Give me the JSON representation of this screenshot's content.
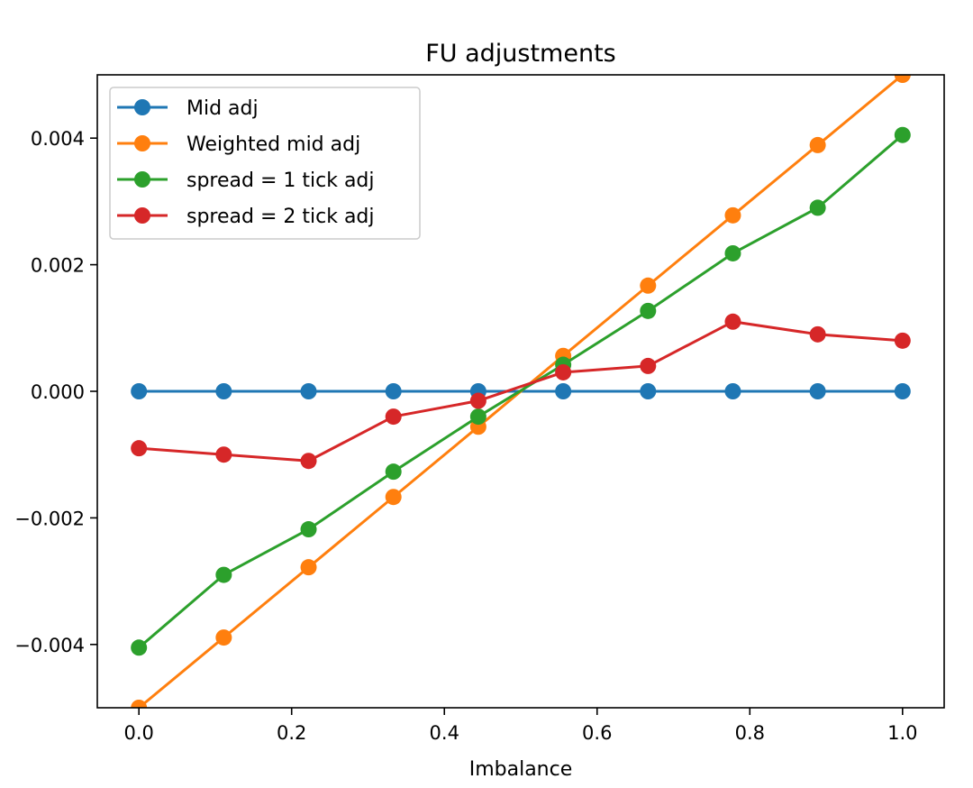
{
  "chart_data": {
    "type": "line",
    "title": "FU adjustments",
    "xlabel": "Imbalance",
    "ylabel": "",
    "xlim": [
      -0.0545,
      1.0545
    ],
    "ylim": [
      -0.005,
      0.005
    ],
    "xticks": [
      0.0,
      0.2,
      0.4,
      0.6,
      0.8,
      1.0
    ],
    "xtick_labels": [
      "0.0",
      "0.2",
      "0.4",
      "0.6",
      "0.8",
      "1.0"
    ],
    "yticks": [
      -0.004,
      -0.002,
      0.0,
      0.002,
      0.004
    ],
    "ytick_labels": [
      "−0.004",
      "−0.002",
      "0.000",
      "0.002",
      "0.004"
    ],
    "grid": false,
    "legend_location": "top-left",
    "x": [
      0.0,
      0.1111,
      0.2222,
      0.3333,
      0.4444,
      0.5556,
      0.6667,
      0.7778,
      0.8889,
      1.0
    ],
    "series": [
      {
        "name": "Mid adj",
        "color": "#1f77b4",
        "values": [
          0.0,
          0.0,
          0.0,
          0.0,
          0.0,
          0.0,
          0.0,
          0.0,
          0.0,
          0.0
        ]
      },
      {
        "name": "Weighted mid adj",
        "color": "#ff7f0e",
        "values": [
          -0.005,
          -0.00389,
          -0.00278,
          -0.00167,
          -0.00056,
          0.00056,
          0.00167,
          0.00278,
          0.00389,
          0.005
        ]
      },
      {
        "name": "spread = 1 tick adj",
        "color": "#2ca02c",
        "values": [
          -0.00405,
          -0.0029,
          -0.00218,
          -0.00127,
          -0.0004,
          0.00042,
          0.00127,
          0.00218,
          0.0029,
          0.00405
        ]
      },
      {
        "name": "spread = 2 tick adj",
        "color": "#d62728",
        "values": [
          -0.0009,
          -0.001,
          -0.0011,
          -0.0004,
          -0.00015,
          0.0003,
          0.0004,
          0.0011,
          0.0009,
          0.0008
        ]
      }
    ]
  }
}
